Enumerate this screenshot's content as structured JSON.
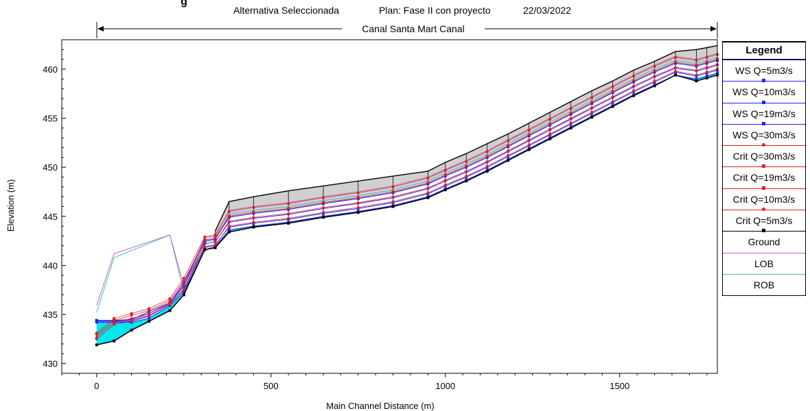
{
  "header": {
    "title_fragment": "g",
    "subtitle_parts": [
      "Alternativa Seleccionada",
      "Plan: Fase II con proyecto",
      "22/03/2022"
    ]
  },
  "reach_label": "Canal Santa Mart Canal",
  "legend": {
    "title": "Legend",
    "items": [
      {
        "label": "WS  Q=5m3/s",
        "color": "#2020ff",
        "marker": "none"
      },
      {
        "label": "WS  Q=10m3/s",
        "color": "#2020ff",
        "marker": "triangle-up"
      },
      {
        "label": "WS  Q=19m3/s",
        "color": "#2020ff",
        "marker": "triangle-down"
      },
      {
        "label": "WS  Q=30m3/s",
        "color": "#2020ff",
        "marker": "square"
      },
      {
        "label": "Crit  Q=30m3/s",
        "color": "#e02020",
        "marker": "dot"
      },
      {
        "label": "Crit  Q=19m3/s",
        "color": "#e02020",
        "marker": "triangle-down"
      },
      {
        "label": "Crit  Q=10m3/s",
        "color": "#e02020",
        "marker": "triangle-up"
      },
      {
        "label": "Crit  Q=5m3/s",
        "color": "#e02020",
        "marker": "dot"
      },
      {
        "label": "Ground",
        "color": "#000000",
        "marker": "square"
      },
      {
        "label": "LOB",
        "color": "#c060c0",
        "marker": "none"
      },
      {
        "label": "ROB",
        "color": "#40c0c0",
        "marker": "none"
      }
    ]
  },
  "colors": {
    "ws": "#2020ff",
    "crit": "#e02020",
    "ground": "#000000",
    "lob": "#c060c0",
    "rob": "#40c0c0",
    "water": "#00e8f0",
    "wall": "#d0d0d0"
  },
  "chart_data": {
    "type": "line",
    "xlabel": "Main Channel Distance (m)",
    "ylabel": "Elevation (m)",
    "xlim": [
      -100,
      1780
    ],
    "ylim": [
      429,
      463
    ],
    "xticks": [
      0,
      500,
      1000,
      1500
    ],
    "yticks": [
      430,
      435,
      440,
      445,
      450,
      455,
      460
    ],
    "stations": [
      0,
      50,
      100,
      150,
      210,
      250,
      310,
      340,
      380,
      450,
      550,
      650,
      750,
      850,
      950,
      1000,
      1060,
      1120,
      1180,
      1240,
      1300,
      1360,
      1420,
      1480,
      1540,
      1600,
      1660,
      1720,
      1750,
      1780
    ],
    "ground": [
      431.9,
      432.3,
      433.4,
      434.3,
      435.4,
      437.0,
      441.6,
      441.8,
      443.4,
      443.9,
      444.3,
      444.9,
      445.4,
      446.0,
      446.9,
      447.7,
      448.6,
      449.6,
      450.7,
      451.8,
      452.9,
      454.0,
      455.1,
      456.2,
      457.3,
      458.3,
      459.4,
      458.8,
      459.1,
      459.4
    ],
    "bank_top": [
      null,
      null,
      null,
      null,
      null,
      null,
      null,
      443.5,
      446.5,
      447.0,
      447.6,
      448.1,
      448.6,
      449.1,
      449.6,
      450.5,
      451.4,
      452.4,
      453.4,
      454.5,
      455.6,
      456.7,
      457.8,
      458.8,
      459.9,
      460.8,
      461.8,
      462.0,
      462.2,
      462.4
    ],
    "series": [
      {
        "name": "WS  Q=5m3/s",
        "values": [
          434.2,
          434.2,
          434.2,
          434.6,
          435.9,
          437.3,
          441.6,
          441.9,
          443.6,
          444.0,
          444.4,
          445.0,
          445.5,
          446.1,
          447.0,
          447.8,
          448.7,
          449.7,
          450.8,
          451.9,
          453.0,
          454.1,
          455.2,
          456.3,
          457.4,
          458.4,
          459.4,
          459.0,
          459.3,
          459.6
        ]
      },
      {
        "name": "WS  Q=10m3/s",
        "values": [
          434.3,
          434.3,
          434.3,
          434.9,
          436.0,
          437.6,
          441.9,
          442.1,
          443.9,
          444.3,
          444.7,
          445.3,
          445.8,
          446.4,
          447.3,
          448.1,
          449.0,
          450.0,
          451.1,
          452.2,
          453.3,
          454.4,
          455.5,
          456.6,
          457.7,
          458.7,
          459.7,
          459.3,
          459.6,
          459.9
        ]
      },
      {
        "name": "WS  Q=19m3/s",
        "values": [
          434.35,
          434.35,
          434.4,
          435.1,
          436.1,
          437.9,
          442.2,
          442.4,
          444.4,
          444.8,
          445.2,
          445.8,
          446.3,
          446.9,
          447.8,
          448.6,
          449.5,
          450.5,
          451.6,
          452.7,
          453.8,
          454.9,
          456.0,
          457.1,
          458.2,
          459.2,
          460.1,
          459.8,
          460.1,
          460.4
        ]
      },
      {
        "name": "WS  Q=30m3/s",
        "values": [
          434.4,
          434.4,
          434.5,
          435.3,
          436.2,
          438.2,
          442.5,
          442.7,
          444.9,
          445.3,
          445.7,
          446.3,
          446.8,
          447.4,
          448.3,
          449.1,
          450.0,
          451.0,
          452.1,
          453.2,
          454.3,
          455.4,
          456.5,
          457.6,
          458.7,
          459.7,
          460.6,
          460.3,
          460.6,
          460.9
        ]
      },
      {
        "name": "Crit  Q=30m3/s",
        "values": [
          433.1,
          434.6,
          435.1,
          435.6,
          436.6,
          438.7,
          442.9,
          443.1,
          445.5,
          445.9,
          446.3,
          446.9,
          447.4,
          448.0,
          448.9,
          449.7,
          450.6,
          451.6,
          452.7,
          453.8,
          454.9,
          456.0,
          457.1,
          458.2,
          459.3,
          460.3,
          461.2,
          460.9,
          461.2,
          461.5
        ]
      },
      {
        "name": "Crit  Q=19m3/s",
        "values": [
          432.9,
          434.4,
          434.9,
          435.4,
          436.4,
          438.4,
          442.6,
          442.8,
          445.0,
          445.4,
          445.8,
          446.4,
          446.9,
          447.5,
          448.4,
          449.2,
          450.1,
          451.1,
          452.2,
          453.3,
          454.4,
          455.5,
          456.6,
          457.7,
          458.8,
          459.8,
          460.7,
          460.4,
          460.7,
          461.0
        ]
      },
      {
        "name": "Crit  Q=10m3/s",
        "values": [
          432.7,
          434.2,
          434.6,
          435.1,
          436.2,
          438.0,
          442.2,
          442.4,
          444.5,
          444.9,
          445.3,
          445.9,
          446.4,
          447.0,
          447.9,
          448.7,
          449.6,
          450.6,
          451.7,
          452.8,
          453.9,
          455.0,
          456.1,
          457.2,
          458.3,
          459.3,
          460.2,
          459.9,
          460.2,
          460.5
        ]
      },
      {
        "name": "Crit  Q=5m3/s",
        "values": [
          432.5,
          434.0,
          434.3,
          434.8,
          436.0,
          437.5,
          441.8,
          442.0,
          444.0,
          444.4,
          444.8,
          445.4,
          445.9,
          446.5,
          447.4,
          448.2,
          449.1,
          450.1,
          451.2,
          452.3,
          453.4,
          454.5,
          455.6,
          456.7,
          457.8,
          458.8,
          459.8,
          459.4,
          459.7,
          460.0
        ]
      }
    ],
    "lob": {
      "x": [
        0,
        50,
        210,
        250,
        310,
        340,
        380,
        450,
        550,
        650,
        750,
        850,
        950,
        1000,
        1060,
        1120,
        1180,
        1240,
        1300,
        1360,
        1420,
        1480,
        1540,
        1600,
        1660,
        1720,
        1750,
        1780
      ],
      "values": [
        435.9,
        441.2,
        443.1,
        437.9,
        442.8,
        443.0,
        445.6,
        446.0,
        446.4,
        447.0,
        447.5,
        448.1,
        449.0,
        449.8,
        450.7,
        451.7,
        452.8,
        453.9,
        455.0,
        456.1,
        457.2,
        458.3,
        459.4,
        460.4,
        461.3,
        461.0,
        461.3,
        461.6
      ]
    },
    "rob": {
      "x": [
        0,
        50,
        210,
        250,
        310,
        340,
        380,
        450,
        550,
        650,
        750,
        850,
        950,
        1000,
        1060,
        1120,
        1180,
        1240,
        1300,
        1360,
        1420,
        1480,
        1540,
        1600,
        1660,
        1720,
        1750,
        1780
      ],
      "values": [
        435.2,
        440.8,
        443.1,
        437.3,
        442.4,
        442.6,
        445.2,
        445.6,
        446.0,
        446.6,
        447.1,
        447.7,
        448.6,
        449.4,
        450.3,
        451.3,
        452.4,
        453.5,
        454.6,
        455.7,
        456.8,
        457.9,
        459.0,
        460.0,
        460.9,
        460.6,
        460.9,
        461.2
      ]
    }
  }
}
